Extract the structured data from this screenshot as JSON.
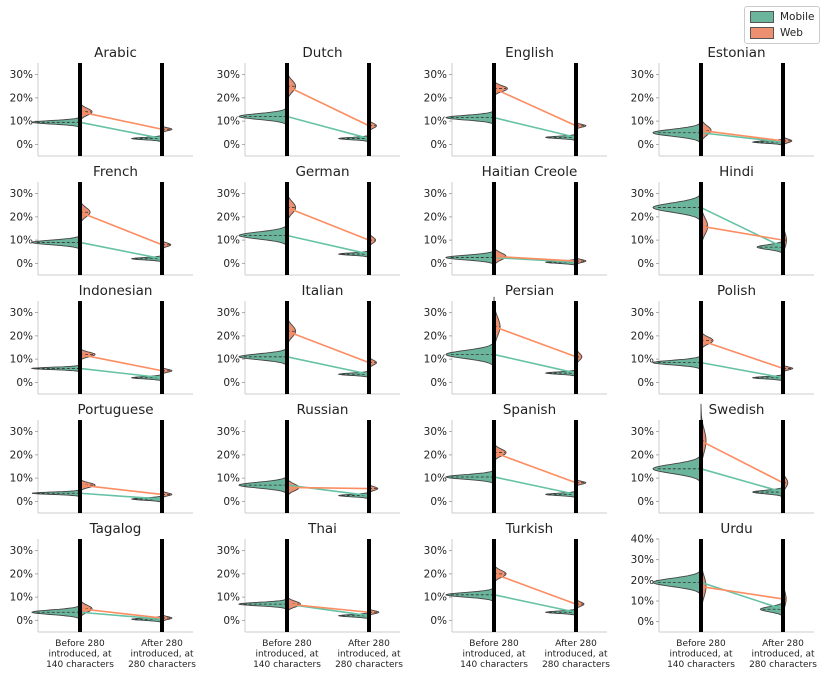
{
  "legend": {
    "items": [
      {
        "label": "Mobile",
        "color": "#66c2a5",
        "swatch": "#6ab59c"
      },
      {
        "label": "Web",
        "color": "#fc8d62",
        "swatch": "#ec9071"
      }
    ]
  },
  "chart_data": {
    "type": "violin",
    "title": "",
    "layout": "5 rows x 4 columns of small multiples (split violins)",
    "categories": [
      "Before 280 introduced, at 140 characters",
      "After 280 introduced, at 280 characters"
    ],
    "category_lines": [
      [
        "Before 280",
        "introduced, at",
        "140 characters"
      ],
      [
        "After 280",
        "introduced, at",
        "280 characters"
      ]
    ],
    "series": [
      "Mobile",
      "Web"
    ],
    "y_ticks_default": [
      "0%",
      "10%",
      "20%",
      "30%"
    ],
    "y_ticks_urdu": [
      "0%",
      "10%",
      "20%",
      "30%",
      "40%"
    ],
    "ylim_default": [
      -5,
      35
    ],
    "ylim_urdu": [
      -5,
      40
    ],
    "panels": [
      {
        "name": "Arabic",
        "mobile": [
          9.5,
          2.5
        ],
        "web": [
          14,
          6.5
        ],
        "spread": [
          [
            1.5,
            3,
            1,
            1
          ],
          [
            0.8,
            0.6
          ]
        ]
      },
      {
        "name": "Dutch",
        "mobile": [
          12,
          2.5
        ],
        "web": [
          25,
          8
        ],
        "spread": [
          [
            2.5,
            5,
            2,
            3
          ],
          [
            1,
            2
          ]
        ]
      },
      {
        "name": "English",
        "mobile": [
          11.5,
          3
        ],
        "web": [
          24,
          8
        ],
        "spread": [
          [
            2,
            2.5,
            1.5,
            1.5
          ],
          [
            0.6,
            0.8
          ]
        ]
      },
      {
        "name": "Estonian",
        "mobile": [
          5,
          1
        ],
        "web": [
          6,
          1.5
        ],
        "spread": [
          [
            3,
            4,
            2,
            2
          ],
          [
            1,
            1.5
          ]
        ]
      },
      {
        "name": "French",
        "mobile": [
          9,
          2
        ],
        "web": [
          22,
          8
        ],
        "spread": [
          [
            2,
            4,
            1.5,
            2
          ],
          [
            0.6,
            1.5
          ]
        ]
      },
      {
        "name": "German",
        "mobile": [
          12,
          4
        ],
        "web": [
          24,
          10
        ],
        "spread": [
          [
            3,
            5,
            2,
            3
          ],
          [
            1,
            2.5
          ]
        ]
      },
      {
        "name": "Haitian Creole",
        "mobile": [
          2.5,
          0.5
        ],
        "web": [
          3,
          1
        ],
        "spread": [
          [
            2,
            3,
            0.5,
            1
          ],
          [
            0.8,
            1
          ]
        ]
      },
      {
        "name": "Hindi",
        "mobile": [
          24,
          7
        ],
        "web": [
          16,
          10
        ],
        "spread": [
          [
            4,
            7,
            2.5,
            4
          ],
          [
            2,
            6
          ]
        ]
      },
      {
        "name": "Indonesian",
        "mobile": [
          6,
          2
        ],
        "web": [
          12,
          5
        ],
        "spread": [
          [
            1,
            2,
            1,
            1
          ],
          [
            0.5,
            1
          ]
        ]
      },
      {
        "name": "Italian",
        "mobile": [
          11,
          3.5
        ],
        "web": [
          22,
          8.5
        ],
        "spread": [
          [
            2.5,
            5,
            2,
            3
          ],
          [
            1,
            2
          ]
        ]
      },
      {
        "name": "Persian",
        "mobile": [
          12,
          4
        ],
        "web": [
          24,
          11
        ],
        "spread": [
          [
            3.5,
            8,
            2.5,
            5
          ],
          [
            1,
            3
          ]
        ]
      },
      {
        "name": "Polish",
        "mobile": [
          8.5,
          2
        ],
        "web": [
          18,
          6
        ],
        "spread": [
          [
            2,
            3,
            1.5,
            2
          ],
          [
            0.6,
            1.2
          ]
        ]
      },
      {
        "name": "Portuguese",
        "mobile": [
          3.5,
          1
        ],
        "web": [
          7,
          3
        ],
        "spread": [
          [
            1,
            2,
            0.5,
            0.8
          ],
          [
            0.4,
            0.8
          ]
        ]
      },
      {
        "name": "Russian",
        "mobile": [
          7,
          2.5
        ],
        "web": [
          6,
          5.5
        ],
        "spread": [
          [
            2.5,
            3,
            1.5,
            2
          ],
          [
            1,
            1.5
          ]
        ]
      },
      {
        "name": "Spanish",
        "mobile": [
          10.5,
          3
        ],
        "web": [
          21,
          8
        ],
        "spread": [
          [
            2,
            3,
            2,
            2
          ],
          [
            0.8,
            1.2
          ]
        ]
      },
      {
        "name": "Swedish",
        "mobile": [
          14,
          4
        ],
        "web": [
          26,
          8
        ],
        "spread": [
          [
            4,
            10,
            3,
            6
          ],
          [
            1.5,
            4
          ]
        ]
      },
      {
        "name": "Tagalog",
        "mobile": [
          3.5,
          0.5
        ],
        "web": [
          5,
          1
        ],
        "spread": [
          [
            2,
            3,
            1,
            1
          ],
          [
            0.4,
            0.6
          ]
        ]
      },
      {
        "name": "Thai",
        "mobile": [
          7,
          2
        ],
        "web": [
          7,
          3.5
        ],
        "spread": [
          [
            1.5,
            2.5,
            1,
            1.5
          ],
          [
            0.8,
            1.2
          ]
        ]
      },
      {
        "name": "Turkish",
        "mobile": [
          11,
          3.5
        ],
        "web": [
          20,
          7
        ],
        "spread": [
          [
            2,
            3,
            1.5,
            2
          ],
          [
            1,
            1.8
          ]
        ]
      },
      {
        "name": "Urdu",
        "mobile": [
          19,
          6
        ],
        "web": [
          17,
          11
        ],
        "spread": [
          [
            4,
            10,
            5,
            11
          ],
          [
            2.5,
            7
          ]
        ]
      }
    ]
  }
}
